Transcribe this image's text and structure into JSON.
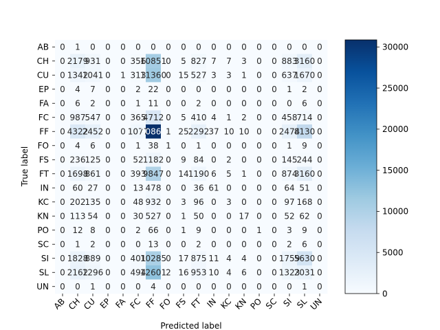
{
  "chart_data": {
    "type": "heatmap",
    "title": "",
    "xlabel": "Predicted label",
    "ylabel": "True label",
    "labels": [
      "AB",
      "CH",
      "CU",
      "EP",
      "FA",
      "FC",
      "FF",
      "FO",
      "FS",
      "FT",
      "IN",
      "KC",
      "KN",
      "PO",
      "SC",
      "SI",
      "SL",
      "UN"
    ],
    "cell_text": [
      [
        "0",
        "1",
        "0",
        "0",
        "0",
        "0",
        "0",
        "0",
        "0",
        "0",
        "0",
        "0",
        "0",
        "0",
        "0",
        "0",
        "0",
        "0"
      ],
      [
        "0",
        "2179",
        "931",
        "0",
        "0",
        "356",
        "10851",
        "0",
        "5",
        "827",
        "7",
        "7",
        "3",
        "0",
        "0",
        "883",
        "3160",
        "0"
      ],
      [
        "0",
        "1342",
        "1041",
        "0",
        "1",
        "313",
        "11360",
        "0",
        "15",
        "527",
        "3",
        "3",
        "1",
        "0",
        "0",
        "637",
        "1670",
        "0"
      ],
      [
        "0",
        "4",
        "7",
        "0",
        "0",
        "2",
        "22",
        "0",
        "0",
        "0",
        "0",
        "0",
        "0",
        "0",
        "0",
        "1",
        "2",
        "0"
      ],
      [
        "0",
        "6",
        "2",
        "0",
        "0",
        "1",
        "11",
        "0",
        "0",
        "2",
        "0",
        "0",
        "0",
        "0",
        "0",
        "0",
        "6",
        "0"
      ],
      [
        "0",
        "987",
        "547",
        "0",
        "0",
        "365",
        "4712",
        "0",
        "5",
        "410",
        "4",
        "1",
        "2",
        "0",
        "0",
        "458",
        "714",
        "0"
      ],
      [
        "0",
        "4322",
        "2452",
        "0",
        "0",
        "1077",
        "30861",
        "1",
        "25",
        "2292",
        "37",
        "10",
        "10",
        "0",
        "0",
        "2474",
        "8130",
        "0"
      ],
      [
        "0",
        "4",
        "6",
        "0",
        "0",
        "1",
        "38",
        "1",
        "0",
        "1",
        "0",
        "0",
        "0",
        "0",
        "0",
        "1",
        "9",
        "0"
      ],
      [
        "0",
        "236",
        "125",
        "0",
        "0",
        "52",
        "1182",
        "0",
        "9",
        "84",
        "0",
        "2",
        "0",
        "0",
        "0",
        "145",
        "244",
        "0"
      ],
      [
        "0",
        "1698",
        "861",
        "0",
        "0",
        "393",
        "9847",
        "0",
        "14",
        "1190",
        "6",
        "5",
        "1",
        "0",
        "0",
        "874",
        "3160",
        "0"
      ],
      [
        "0",
        "60",
        "27",
        "0",
        "0",
        "13",
        "478",
        "0",
        "0",
        "36",
        "61",
        "0",
        "0",
        "0",
        "0",
        "64",
        "51",
        "0"
      ],
      [
        "0",
        "202",
        "135",
        "0",
        "0",
        "48",
        "932",
        "0",
        "3",
        "96",
        "0",
        "3",
        "0",
        "0",
        "0",
        "97",
        "168",
        "0"
      ],
      [
        "0",
        "113",
        "54",
        "0",
        "0",
        "30",
        "527",
        "0",
        "1",
        "50",
        "0",
        "0",
        "17",
        "0",
        "0",
        "52",
        "62",
        "0"
      ],
      [
        "0",
        "12",
        "8",
        "0",
        "0",
        "2",
        "66",
        "0",
        "1",
        "9",
        "0",
        "0",
        "0",
        "1",
        "0",
        "3",
        "9",
        "0"
      ],
      [
        "0",
        "1",
        "2",
        "0",
        "0",
        "0",
        "13",
        "0",
        "0",
        "2",
        "0",
        "0",
        "0",
        "0",
        "0",
        "2",
        "6",
        "0"
      ],
      [
        "0",
        "1828",
        "889",
        "0",
        "0",
        "401",
        "10285",
        "0",
        "17",
        "875",
        "11",
        "4",
        "4",
        "0",
        "0",
        "1759",
        "5630",
        "0"
      ],
      [
        "0",
        "2162",
        "1296",
        "0",
        "0",
        "494",
        "12601",
        "2",
        "16",
        "953",
        "10",
        "4",
        "6",
        "0",
        "0",
        "1323",
        "2031",
        "0"
      ],
      [
        "0",
        "0",
        "1",
        "0",
        "0",
        "0",
        "4",
        "0",
        "0",
        "0",
        "0",
        "0",
        "0",
        "0",
        "0",
        "0",
        "1",
        "0"
      ]
    ],
    "colorbar": {
      "min": 0,
      "max": 30861,
      "ticks": [
        "0",
        "5000",
        "10000",
        "15000",
        "20000",
        "25000",
        "30000"
      ],
      "tick_values": [
        0,
        5000,
        10000,
        15000,
        20000,
        25000,
        30000
      ]
    },
    "colormap": "Blues",
    "colors": {
      "low": "#f7fbff",
      "high": "#08306b"
    }
  }
}
